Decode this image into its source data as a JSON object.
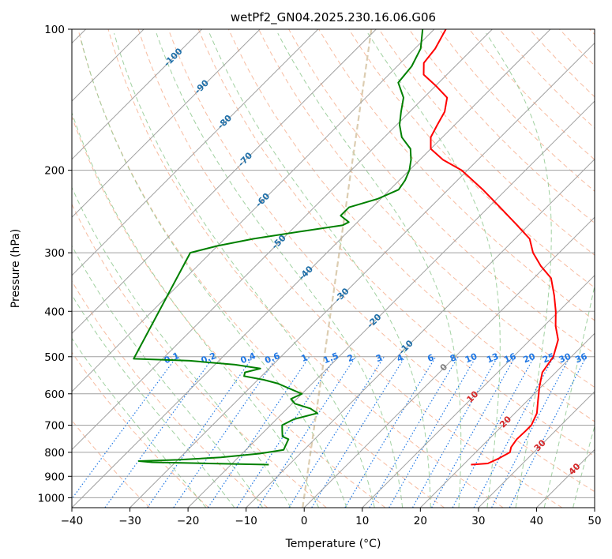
{
  "chart_data": {
    "type": "line",
    "subtype": "skew-t log-p",
    "title": "wetPf2_GN04.2025.230.16.06.G06",
    "xlabel": "Temperature (°C)",
    "ylabel": "Pressure (hPa)",
    "xlim": [
      -40,
      50
    ],
    "ylim": [
      1050,
      100
    ],
    "x_ticks": [
      -40,
      -30,
      -20,
      -10,
      0,
      10,
      20,
      30,
      40,
      50
    ],
    "y_ticks": [
      100,
      200,
      300,
      400,
      500,
      600,
      700,
      800,
      900,
      1000
    ],
    "y_scale": "log",
    "grid": true,
    "colors": {
      "temperature": "#ff0000",
      "dewpoint": "#008000",
      "isotherm": "#a0a0a0",
      "dry_adiabat": "#f4a582",
      "moist_adiabat": "#90c990",
      "mixing_ratio": "#1f77e4",
      "isotherm_label": "#1f6fa8",
      "warm_label": "#d62728",
      "zero_label": "#808080",
      "ccl_curve": "#d8c8a8"
    },
    "isotherm_labels": {
      "blue": [
        "-100",
        "-90",
        "-80",
        "-70",
        "-60",
        "-50",
        "-40",
        "-30",
        "-20",
        "-10"
      ],
      "zero": "0",
      "red": [
        "10",
        "20",
        "30",
        "40"
      ]
    },
    "mixing_ratio_labels": [
      "0.1",
      "0.2",
      "0.4",
      "0.6",
      "1",
      "1.5",
      "2",
      "3",
      "4",
      "6",
      "8",
      "10",
      "13",
      "16",
      "20",
      "25",
      "30",
      "36"
    ],
    "series": [
      {
        "name": "",
        "role": "temperature",
        "points": [
          {
            "p": 850,
            "t": 21.3
          },
          {
            "p": 845,
            "t": 24.0
          },
          {
            "p": 825,
            "t": 25.0
          },
          {
            "p": 800,
            "t": 25.9
          },
          {
            "p": 780,
            "t": 25.2
          },
          {
            "p": 750,
            "t": 24.8
          },
          {
            "p": 720,
            "t": 24.9
          },
          {
            "p": 700,
            "t": 24.9
          },
          {
            "p": 660,
            "t": 23.8
          },
          {
            "p": 620,
            "t": 21.8
          },
          {
            "p": 580,
            "t": 19.7
          },
          {
            "p": 540,
            "t": 17.7
          },
          {
            "p": 500,
            "t": 16.9
          },
          {
            "p": 460,
            "t": 14.8
          },
          {
            "p": 430,
            "t": 12.0
          },
          {
            "p": 400,
            "t": 9.5
          },
          {
            "p": 370,
            "t": 6.5
          },
          {
            "p": 340,
            "t": 3.0
          },
          {
            "p": 320,
            "t": -0.9
          },
          {
            "p": 300,
            "t": -4.5
          },
          {
            "p": 280,
            "t": -7.5
          },
          {
            "p": 260,
            "t": -12.5
          },
          {
            "p": 240,
            "t": -18.0
          },
          {
            "p": 220,
            "t": -24.0
          },
          {
            "p": 200,
            "t": -31.0
          },
          {
            "p": 190,
            "t": -36.0
          },
          {
            "p": 180,
            "t": -40.0
          },
          {
            "p": 170,
            "t": -42.0
          },
          {
            "p": 160,
            "t": -43.0
          },
          {
            "p": 150,
            "t": -44.0
          },
          {
            "p": 140,
            "t": -46.0
          },
          {
            "p": 132,
            "t": -50.0
          },
          {
            "p": 125,
            "t": -54.0
          },
          {
            "p": 118,
            "t": -56.0
          },
          {
            "p": 110,
            "t": -56.5
          },
          {
            "p": 100,
            "t": -58.0
          }
        ]
      },
      {
        "name": "",
        "role": "dewpoint",
        "points": [
          {
            "p": 850,
            "t": -13.5
          },
          {
            "p": 845,
            "t": -24.0
          },
          {
            "p": 840,
            "t": -34.0
          },
          {
            "p": 835,
            "t": -36.5
          },
          {
            "p": 830,
            "t": -30.0
          },
          {
            "p": 820,
            "t": -23.0
          },
          {
            "p": 805,
            "t": -17.0
          },
          {
            "p": 790,
            "t": -13.5
          },
          {
            "p": 770,
            "t": -14.0
          },
          {
            "p": 750,
            "t": -14.5
          },
          {
            "p": 740,
            "t": -16.0
          },
          {
            "p": 720,
            "t": -17.0
          },
          {
            "p": 700,
            "t": -18.0
          },
          {
            "p": 680,
            "t": -17.0
          },
          {
            "p": 660,
            "t": -14.0
          },
          {
            "p": 645,
            "t": -16.0
          },
          {
            "p": 630,
            "t": -19.5
          },
          {
            "p": 615,
            "t": -21.0
          },
          {
            "p": 600,
            "t": -20.0
          },
          {
            "p": 590,
            "t": -22.0
          },
          {
            "p": 580,
            "t": -24.0
          },
          {
            "p": 570,
            "t": -26.0
          },
          {
            "p": 560,
            "t": -29.0
          },
          {
            "p": 550,
            "t": -33.0
          },
          {
            "p": 540,
            "t": -33.5
          },
          {
            "p": 530,
            "t": -31.5
          },
          {
            "p": 520,
            "t": -36.5
          },
          {
            "p": 510,
            "t": -45.0
          },
          {
            "p": 505,
            "t": -55.0
          },
          {
            "p": 300,
            "t": -63.5
          },
          {
            "p": 290,
            "t": -60.0
          },
          {
            "p": 280,
            "t": -55.0
          },
          {
            "p": 270,
            "t": -48.0
          },
          {
            "p": 262,
            "t": -42.0
          },
          {
            "p": 258,
            "t": -41.5
          },
          {
            "p": 250,
            "t": -44.0
          },
          {
            "p": 240,
            "t": -44.0
          },
          {
            "p": 230,
            "t": -40.5
          },
          {
            "p": 220,
            "t": -38.5
          },
          {
            "p": 210,
            "t": -39.0
          },
          {
            "p": 200,
            "t": -40.0
          },
          {
            "p": 190,
            "t": -41.5
          },
          {
            "p": 180,
            "t": -43.5
          },
          {
            "p": 170,
            "t": -47.0
          },
          {
            "p": 160,
            "t": -49.5
          },
          {
            "p": 150,
            "t": -51.5
          },
          {
            "p": 140,
            "t": -53.5
          },
          {
            "p": 130,
            "t": -57.0
          },
          {
            "p": 120,
            "t": -57.5
          },
          {
            "p": 110,
            "t": -59.0
          },
          {
            "p": 100,
            "t": -62.0
          }
        ]
      }
    ]
  }
}
